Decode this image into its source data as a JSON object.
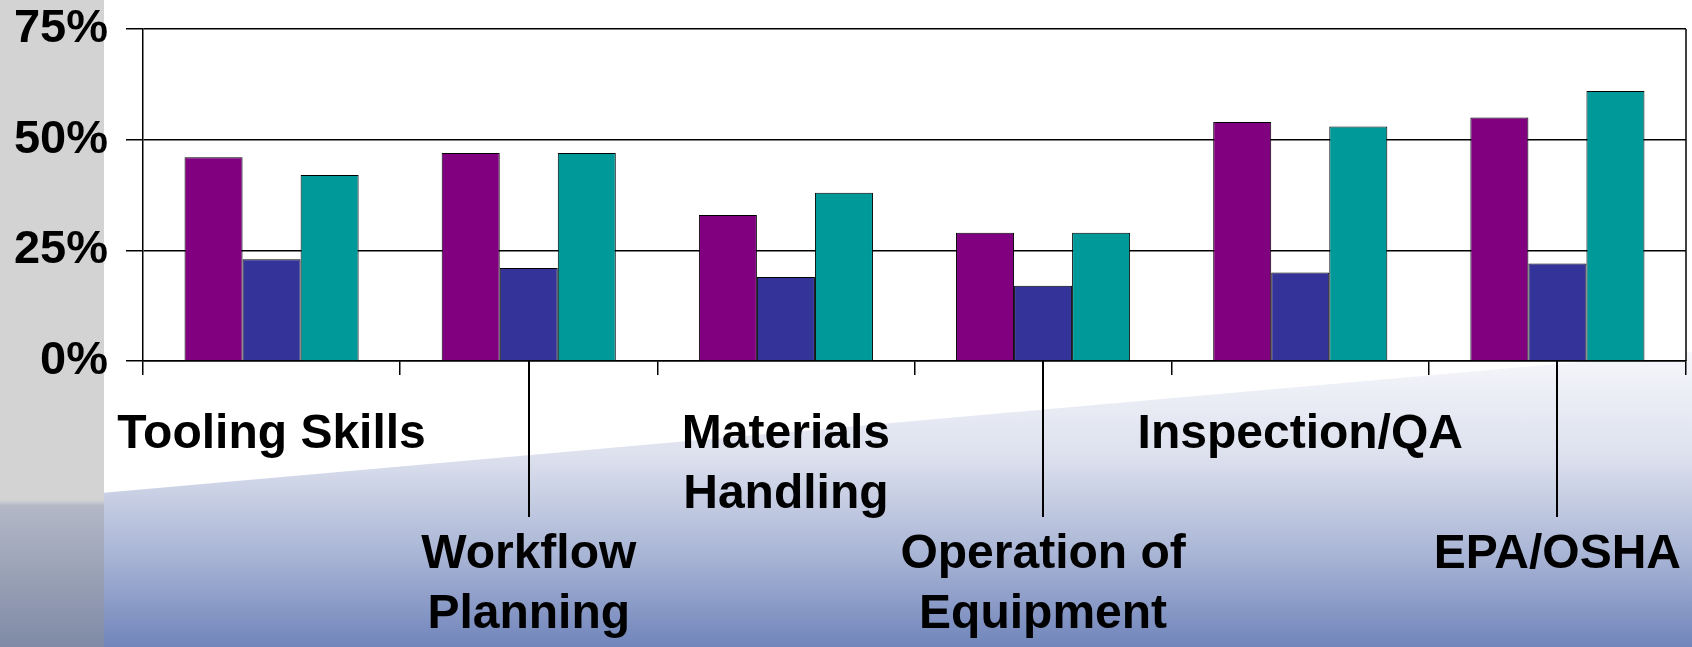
{
  "chart_data": {
    "type": "bar",
    "categories": [
      "Tooling Skills",
      "Workflow Planning",
      "Materials Handling",
      "Operation of Equipment",
      "Inspection/QA",
      "EPA/OSHA"
    ],
    "series": [
      {
        "color": "#800080",
        "values": [
          46,
          47,
          33,
          29,
          54,
          55
        ]
      },
      {
        "color": "#333399",
        "values": [
          23,
          21,
          19,
          17,
          20,
          22
        ]
      },
      {
        "color": "#009999",
        "values": [
          42,
          47,
          38,
          29,
          53,
          61
        ]
      }
    ],
    "ylim": [
      0,
      75
    ],
    "yticks": [
      {
        "value": 0,
        "label": "0%"
      },
      {
        "value": 25,
        "label": "25%"
      },
      {
        "value": 50,
        "label": "50%"
      },
      {
        "value": 75,
        "label": "75%"
      }
    ],
    "grid": "y"
  }
}
